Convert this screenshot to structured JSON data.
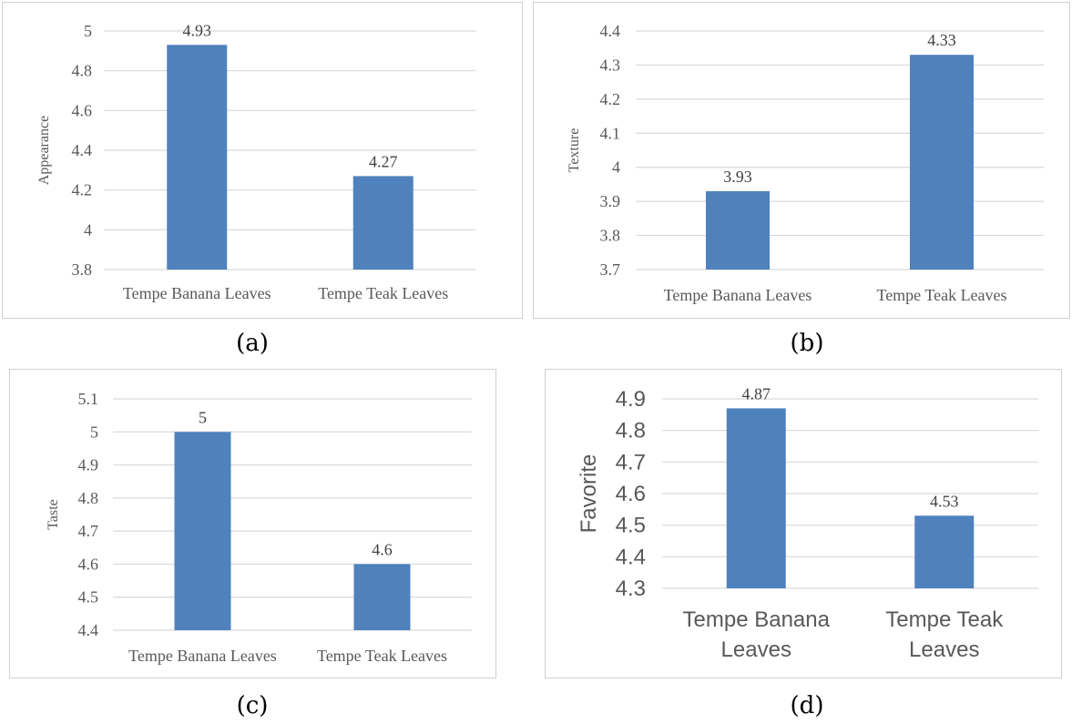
{
  "chart_data": [
    {
      "id": "a",
      "type": "bar",
      "categories": [
        "Tempe Banana Leaves",
        "Tempe Teak Leaves"
      ],
      "values": [
        4.93,
        4.27
      ],
      "data_labels": [
        "4.93",
        "4.27"
      ],
      "ylabel": "Appearance",
      "ylim": [
        3.8,
        5
      ],
      "yticks": [
        "3.8",
        "4",
        "4.2",
        "4.4",
        "4.6",
        "4.8",
        "5"
      ],
      "grid": true,
      "caption": "(a)",
      "color": "#4f81bd"
    },
    {
      "id": "b",
      "type": "bar",
      "categories": [
        "Tempe Banana Leaves",
        "Tempe Teak Leaves"
      ],
      "values": [
        3.93,
        4.33
      ],
      "data_labels": [
        "3.93",
        "4.33"
      ],
      "ylabel": "Texture",
      "ylim": [
        3.7,
        4.4
      ],
      "yticks": [
        "3.7",
        "3.8",
        "3.9",
        "4",
        "4.1",
        "4.2",
        "4.3",
        "4.4"
      ],
      "grid": true,
      "caption": "(b)",
      "color": "#4f81bd"
    },
    {
      "id": "c",
      "type": "bar",
      "categories": [
        "Tempe Banana Leaves",
        "Tempe Teak Leaves"
      ],
      "values": [
        5,
        4.6
      ],
      "data_labels": [
        "5",
        "4.6"
      ],
      "ylabel": "Taste",
      "ylim": [
        4.4,
        5.1
      ],
      "yticks": [
        "4.4",
        "4.5",
        "4.6",
        "4.7",
        "4.8",
        "4.9",
        "5",
        "5.1"
      ],
      "grid": true,
      "caption": "(c)",
      "color": "#4f81bd"
    },
    {
      "id": "d",
      "type": "bar",
      "categories": [
        "Tempe Banana Leaves",
        "Tempe Teak Leaves"
      ],
      "category_lines": [
        [
          "Tempe Banana",
          "Leaves"
        ],
        [
          "Tempe Teak",
          "Leaves"
        ]
      ],
      "values": [
        4.87,
        4.53
      ],
      "data_labels": [
        "4.87",
        "4.53"
      ],
      "ylabel": "Favorite",
      "ylim": [
        4.3,
        4.9
      ],
      "yticks": [
        "4.3",
        "4.4",
        "4.5",
        "4.6",
        "4.7",
        "4.8",
        "4.9"
      ],
      "grid": true,
      "caption": "(d)",
      "color": "#4f81bd"
    }
  ]
}
